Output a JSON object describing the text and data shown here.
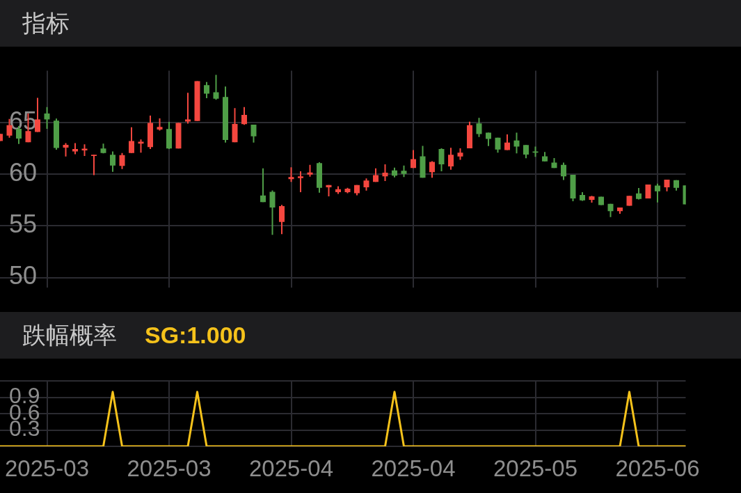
{
  "chart_data": [
    {
      "type": "candlestick",
      "title": "指标",
      "categories": [
        null,
        null,
        null,
        null,
        null,
        "2025-03",
        null,
        null,
        null,
        null,
        null,
        null,
        null,
        null,
        null,
        null,
        null,
        null,
        "2025-03",
        null,
        null,
        null,
        null,
        null,
        null,
        null,
        null,
        null,
        null,
        null,
        null,
        "2025-04",
        null,
        null,
        null,
        null,
        null,
        null,
        null,
        null,
        null,
        null,
        null,
        null,
        "2025-04",
        null,
        null,
        null,
        null,
        null,
        null,
        null,
        null,
        null,
        null,
        null,
        null,
        "2025-05",
        null,
        null,
        null,
        null,
        null,
        null,
        null,
        null,
        null,
        null,
        null,
        null,
        "2025-06",
        null,
        null,
        null
      ],
      "ohlc": [
        [
          63.2,
          63.9,
          63.2,
          63.9
        ],
        [
          63.73,
          65.35,
          63.52,
          64.74
        ],
        [
          64.39,
          64.65,
          62.92,
          63.44
        ],
        [
          63.09,
          65.87,
          63.09,
          64.17
        ],
        [
          64.08,
          67.38,
          64.08,
          65.3
        ],
        [
          65.87,
          66.48,
          64.39,
          65.3
        ],
        [
          65.17,
          65.38,
          62.36,
          62.53
        ],
        [
          62.57,
          63.0,
          61.7,
          62.83
        ],
        [
          62.19,
          63.0,
          61.93,
          62.43
        ],
        [
          62.29,
          62.88,
          61.75,
          62.47
        ],
        [
          61.75,
          61.88,
          59.91,
          61.88
        ],
        [
          62.48,
          62.95,
          62.01,
          62.05
        ],
        [
          61.88,
          62.19,
          60.23,
          60.83
        ],
        [
          60.8,
          62.05,
          60.49,
          61.84
        ],
        [
          62.05,
          64.53,
          62.05,
          63.21
        ],
        [
          62.95,
          63.35,
          62.08,
          63.13
        ],
        [
          62.62,
          65.66,
          62.43,
          64.95
        ],
        [
          64.31,
          65.4,
          64.22,
          64.57
        ],
        [
          64.36,
          65.05,
          62.43,
          62.48
        ],
        [
          62.48,
          64.95,
          62.48,
          64.95
        ],
        [
          65.09,
          67.86,
          64.88,
          65.3
        ],
        [
          65.14,
          69.0,
          65.14,
          68.99
        ],
        [
          68.61,
          68.91,
          67.34,
          67.78
        ],
        [
          67.92,
          69.6,
          67.2,
          67.29
        ],
        [
          67.47,
          68.47,
          63.06,
          63.3
        ],
        [
          63.09,
          66.39,
          63.09,
          64.86
        ],
        [
          64.83,
          66.48,
          64.77,
          65.73
        ],
        [
          64.79,
          64.79,
          63.06,
          63.66
        ],
        [
          57.93,
          60.56,
          57.29,
          57.29
        ],
        [
          58.28,
          58.42,
          54.13,
          56.77
        ],
        [
          55.38,
          57.03,
          54.2,
          56.91
        ],
        [
          59.51,
          60.66,
          59.24,
          59.72
        ],
        [
          59.62,
          60.28,
          58.25,
          59.79
        ],
        [
          59.95,
          60.89,
          59.76,
          60.16
        ],
        [
          61.06,
          61.15,
          58.21,
          58.68
        ],
        [
          58.72,
          58.94,
          57.85,
          58.94
        ],
        [
          58.25,
          58.82,
          58.09,
          58.54
        ],
        [
          58.25,
          58.68,
          58.16,
          58.59
        ],
        [
          58.16,
          58.94,
          57.95,
          58.94
        ],
        [
          58.72,
          59.58,
          58.4,
          59.38
        ],
        [
          59.24,
          60.56,
          59.24,
          59.9
        ],
        [
          59.79,
          60.94,
          59.34,
          60.14
        ],
        [
          60.36,
          60.63,
          59.69,
          59.86
        ],
        [
          60.33,
          60.83,
          59.72,
          60.03
        ],
        [
          60.59,
          62.33,
          60.59,
          61.46
        ],
        [
          61.72,
          62.74,
          59.65,
          59.65
        ],
        [
          60.19,
          61.25,
          59.65,
          61.18
        ],
        [
          62.43,
          62.5,
          60.28,
          60.95
        ],
        [
          60.75,
          62.55,
          60.42,
          61.88
        ],
        [
          61.7,
          62.5,
          61.39,
          62.08
        ],
        [
          62.5,
          65.07,
          62.5,
          64.74
        ],
        [
          64.9,
          65.45,
          63.59,
          63.87
        ],
        [
          64.01,
          64.01,
          62.71,
          63.4
        ],
        [
          63.52,
          63.52,
          62.07,
          62.38
        ],
        [
          62.33,
          63.85,
          62.33,
          63.06
        ],
        [
          63.25,
          64.01,
          62.01,
          62.66
        ],
        [
          62.81,
          62.81,
          61.53,
          61.89
        ],
        [
          62.19,
          62.67,
          61.68,
          62.07
        ],
        [
          61.72,
          62.15,
          61.23,
          61.23
        ],
        [
          61.11,
          61.56,
          60.59,
          60.59
        ],
        [
          60.89,
          61.11,
          59.44,
          59.79
        ],
        [
          59.93,
          59.93,
          57.38,
          57.64
        ],
        [
          57.99,
          58.25,
          57.41,
          57.47
        ],
        [
          57.52,
          57.9,
          57.24,
          57.85
        ],
        [
          57.81,
          57.81,
          57.0,
          57.0
        ],
        [
          57.12,
          57.12,
          55.85,
          56.42
        ],
        [
          56.42,
          56.77,
          56.16,
          56.77
        ],
        [
          56.94,
          57.9,
          56.94,
          57.9
        ],
        [
          58.13,
          58.65,
          57.55,
          57.6
        ],
        [
          57.64,
          58.99,
          57.64,
          58.99
        ],
        [
          58.89,
          59.08,
          57.26,
          58.33
        ],
        [
          58.72,
          59.46,
          58.33,
          59.46
        ],
        [
          59.41,
          59.41,
          58.4,
          58.68
        ],
        [
          58.91,
          58.91,
          57.07,
          57.07
        ]
      ],
      "colors": [
        "#f4473f",
        "#f4473f",
        "#4f9e47",
        "#f4473f",
        "#f4473f",
        "#4f9e47",
        "#4f9e47",
        "#f4473f",
        "#f4473f",
        "#f4473f",
        "#f4473f",
        "#4f9e47",
        "#4f9e47",
        "#f4473f",
        "#f4473f",
        "#f4473f",
        "#f4473f",
        "#f4473f",
        "#4f9e47",
        "#f4473f",
        "#f4473f",
        "#f4473f",
        "#4f9e47",
        "#4f9e47",
        "#4f9e47",
        "#f4473f",
        "#f4473f",
        "#4f9e47",
        "#4f9e47",
        "#4f9e47",
        "#f4473f",
        "#f4473f",
        "#f4473f",
        "#f4473f",
        "#4f9e47",
        "#f4473f",
        "#f4473f",
        "#f4473f",
        "#f4473f",
        "#f4473f",
        "#f4473f",
        "#f4473f",
        "#4f9e47",
        "#4f9e47",
        "#f4473f",
        "#4f9e47",
        "#f4473f",
        "#4f9e47",
        "#f4473f",
        "#f4473f",
        "#f4473f",
        "#4f9e47",
        "#4f9e47",
        "#4f9e47",
        "#f4473f",
        "#4f9e47",
        "#4f9e47",
        "#4f9e47",
        "#4f9e47",
        "#4f9e47",
        "#4f9e47",
        "#4f9e47",
        "#4f9e47",
        "#f4473f",
        "#4f9e47",
        "#4f9e47",
        "#f4473f",
        "#f4473f",
        "#4f9e47",
        "#f4473f",
        "#4f9e47",
        "#f4473f",
        "#4f9e47",
        "#4f9e47"
      ],
      "ylim": [
        49,
        70
      ],
      "yticks": [
        50,
        55,
        60,
        65
      ],
      "grid": true,
      "tick_labels": "y"
    },
    {
      "type": "line",
      "title": "跌幅概率",
      "categories": [
        null,
        null,
        null,
        null,
        null,
        "2025-03",
        null,
        null,
        null,
        null,
        null,
        null,
        null,
        null,
        null,
        null,
        null,
        null,
        "2025-03",
        null,
        null,
        null,
        null,
        null,
        null,
        null,
        null,
        null,
        null,
        null,
        null,
        "2025-04",
        null,
        null,
        null,
        null,
        null,
        null,
        null,
        null,
        null,
        null,
        null,
        null,
        "2025-04",
        null,
        null,
        null,
        null,
        null,
        null,
        null,
        null,
        null,
        null,
        null,
        null,
        "2025-05",
        null,
        null,
        null,
        null,
        null,
        null,
        null,
        null,
        null,
        null,
        null,
        null,
        "2025-06",
        null,
        null,
        null
      ],
      "series": [
        {
          "name": "SG:1.000",
          "color": "#f5c21b",
          "values": [
            0,
            0,
            0,
            0,
            0,
            0,
            0,
            0,
            0,
            0,
            0,
            0,
            1,
            0,
            0,
            0,
            0,
            0,
            0,
            0,
            0,
            1,
            0,
            0,
            0,
            0,
            0,
            0,
            0,
            0,
            0,
            0,
            0,
            0,
            0,
            0,
            0,
            0,
            0,
            0,
            0,
            0,
            1,
            0,
            0,
            0,
            0,
            0,
            0,
            0,
            0,
            0,
            0,
            0,
            0,
            0,
            0,
            0,
            0,
            0,
            0,
            0,
            0,
            0,
            0,
            0,
            0,
            1,
            0,
            0,
            0,
            0,
            0,
            0
          ]
        }
      ],
      "ylim": [
        0,
        1.2
      ],
      "yticks": [
        {
          "value": 0,
          "label": null
        },
        0.3,
        0.6,
        0.9,
        {
          "value": 1.2,
          "label": null
        }
      ],
      "grid": true
    }
  ]
}
